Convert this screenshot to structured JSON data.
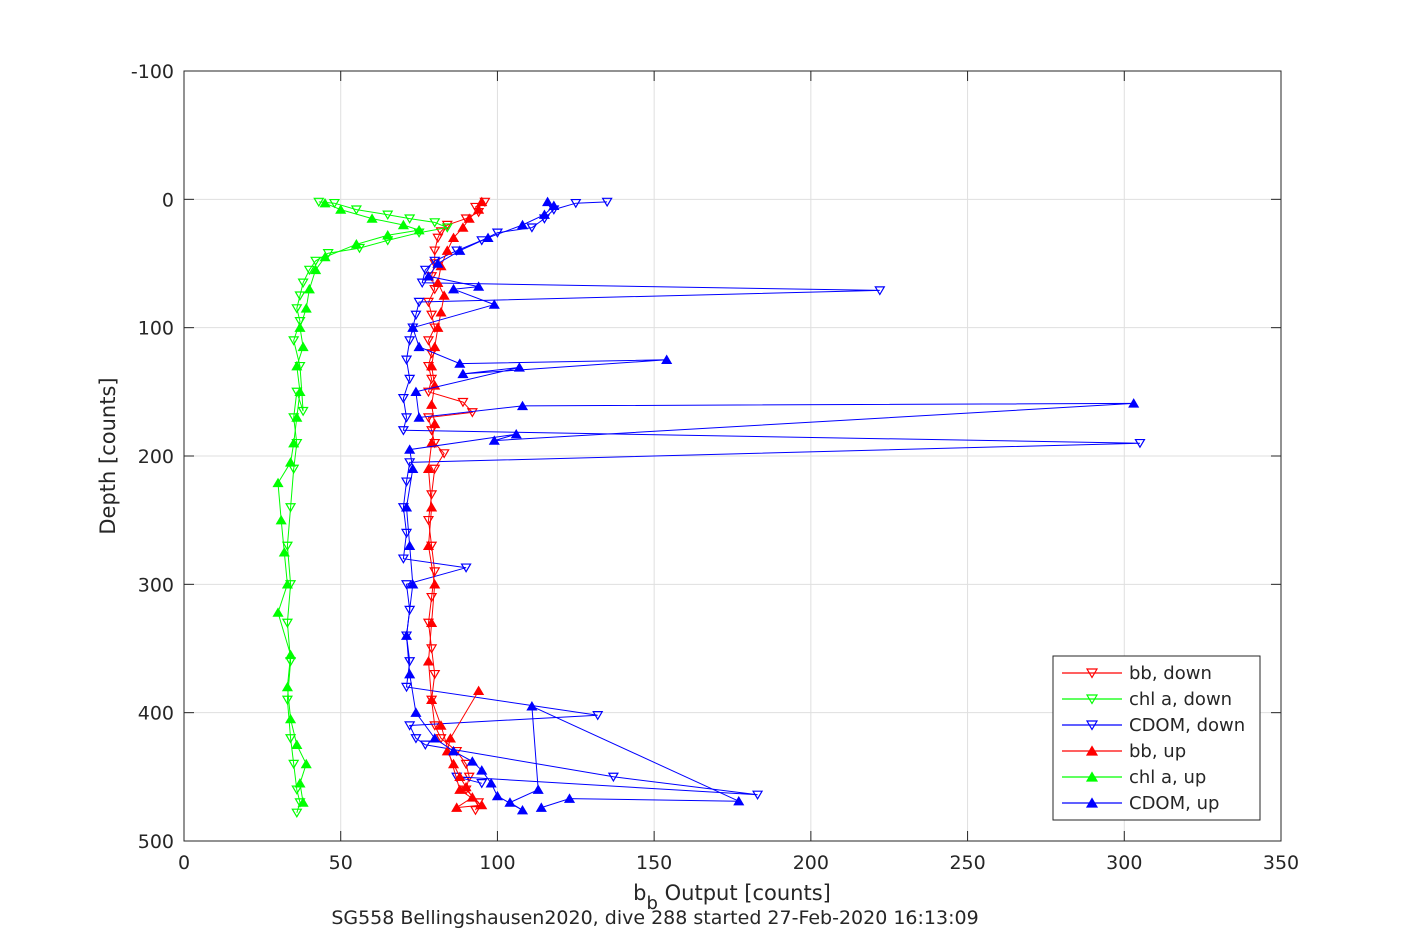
{
  "chart_data": {
    "type": "scatter",
    "title": "",
    "caption": "SG558 Bellingshausen2020, dive 288 started 27-Feb-2020 16:13:09",
    "xlabel": {
      "main": "b",
      "subscript": "b",
      "rest": " Output [counts]"
    },
    "ylabel": "Depth [counts]",
    "xlim": [
      0,
      350
    ],
    "ylim": [
      -100,
      500
    ],
    "y_reversed": true,
    "grid": true,
    "legend_position": "bottom-right",
    "x_ticks": [
      0,
      50,
      100,
      150,
      200,
      250,
      300,
      350
    ],
    "y_ticks": [
      -100,
      0,
      100,
      200,
      300,
      400,
      500
    ],
    "x_tick_labels": [
      "0",
      "50",
      "100",
      "150",
      "200",
      "250",
      "300",
      "350"
    ],
    "y_tick_labels": [
      "-100",
      "0",
      "100",
      "200",
      "300",
      "400",
      "500"
    ],
    "series": [
      {
        "name": "bb, down",
        "color": "#ff0000",
        "marker": "triangle-down",
        "points": [
          [
            96,
            2
          ],
          [
            93,
            6
          ],
          [
            94,
            10
          ],
          [
            90,
            15
          ],
          [
            84,
            20
          ],
          [
            82,
            25
          ],
          [
            81,
            30
          ],
          [
            80,
            40
          ],
          [
            80,
            50
          ],
          [
            79,
            60
          ],
          [
            80,
            70
          ],
          [
            78,
            80
          ],
          [
            79,
            90
          ],
          [
            80,
            100
          ],
          [
            78,
            110
          ],
          [
            79,
            120
          ],
          [
            78,
            130
          ],
          [
            79,
            140
          ],
          [
            78,
            150
          ],
          [
            89,
            158
          ],
          [
            92,
            166
          ],
          [
            78,
            170
          ],
          [
            79,
            180
          ],
          [
            80,
            190
          ],
          [
            83,
            198
          ],
          [
            80,
            210
          ],
          [
            79,
            230
          ],
          [
            78,
            250
          ],
          [
            79,
            270
          ],
          [
            80,
            290
          ],
          [
            79,
            310
          ],
          [
            78,
            330
          ],
          [
            79,
            350
          ],
          [
            80,
            370
          ],
          [
            79,
            390
          ],
          [
            80,
            410
          ],
          [
            82,
            420
          ],
          [
            87,
            430
          ],
          [
            90,
            440
          ],
          [
            91,
            450
          ],
          [
            90,
            460
          ],
          [
            94,
            470
          ],
          [
            93,
            476
          ]
        ]
      },
      {
        "name": "chl a, down",
        "color": "#00ff00",
        "marker": "triangle-down",
        "points": [
          [
            43,
            2
          ],
          [
            48,
            3
          ],
          [
            55,
            8
          ],
          [
            65,
            12
          ],
          [
            72,
            15
          ],
          [
            80,
            18
          ],
          [
            84,
            22
          ],
          [
            75,
            26
          ],
          [
            65,
            32
          ],
          [
            56,
            38
          ],
          [
            46,
            42
          ],
          [
            42,
            48
          ],
          [
            40,
            55
          ],
          [
            38,
            65
          ],
          [
            37,
            75
          ],
          [
            36,
            85
          ],
          [
            37,
            95
          ],
          [
            35,
            110
          ],
          [
            37,
            130
          ],
          [
            38,
            165
          ],
          [
            36,
            150
          ],
          [
            35,
            170
          ],
          [
            36,
            190
          ],
          [
            35,
            210
          ],
          [
            34,
            240
          ],
          [
            33,
            270
          ],
          [
            34,
            300
          ],
          [
            33,
            330
          ],
          [
            34,
            360
          ],
          [
            33,
            390
          ],
          [
            34,
            420
          ],
          [
            35,
            440
          ],
          [
            36,
            460
          ],
          [
            37,
            470
          ],
          [
            36,
            478
          ]
        ]
      },
      {
        "name": "CDOM, down",
        "color": "#0000ff",
        "marker": "triangle-down",
        "points": [
          [
            135,
            2
          ],
          [
            125,
            3
          ],
          [
            118,
            8
          ],
          [
            115,
            15
          ],
          [
            111,
            22
          ],
          [
            100,
            26
          ],
          [
            95,
            32
          ],
          [
            87,
            40
          ],
          [
            80,
            48
          ],
          [
            77,
            55
          ],
          [
            76,
            65
          ],
          [
            222,
            71
          ],
          [
            75,
            80
          ],
          [
            74,
            90
          ],
          [
            73,
            100
          ],
          [
            72,
            110
          ],
          [
            71,
            125
          ],
          [
            72,
            140
          ],
          [
            70,
            155
          ],
          [
            71,
            170
          ],
          [
            70,
            180
          ],
          [
            305,
            190
          ],
          [
            72,
            205
          ],
          [
            71,
            220
          ],
          [
            70,
            240
          ],
          [
            71,
            260
          ],
          [
            70,
            280
          ],
          [
            90,
            287
          ],
          [
            71,
            300
          ],
          [
            72,
            320
          ],
          [
            71,
            340
          ],
          [
            72,
            360
          ],
          [
            71,
            380
          ],
          [
            132,
            402
          ],
          [
            72,
            410
          ],
          [
            74,
            420
          ],
          [
            77,
            425
          ],
          [
            137,
            450
          ],
          [
            183,
            464
          ],
          [
            87,
            450
          ],
          [
            95,
            455
          ]
        ]
      },
      {
        "name": "bb, up",
        "color": "#ff0000",
        "marker": "triangle-up",
        "points": [
          [
            94,
            383
          ],
          [
            85,
            420
          ],
          [
            84,
            430
          ],
          [
            86,
            440
          ],
          [
            88,
            450
          ],
          [
            90,
            458
          ],
          [
            92,
            466
          ],
          [
            87,
            474
          ],
          [
            95,
            472
          ],
          [
            88,
            460
          ],
          [
            82,
            410
          ],
          [
            79,
            390
          ],
          [
            78,
            360
          ],
          [
            79,
            330
          ],
          [
            80,
            300
          ],
          [
            78,
            270
          ],
          [
            79,
            240
          ],
          [
            78,
            210
          ],
          [
            79,
            190
          ],
          [
            80,
            175
          ],
          [
            79,
            160
          ],
          [
            80,
            145
          ],
          [
            79,
            130
          ],
          [
            80,
            115
          ],
          [
            81,
            100
          ],
          [
            82,
            88
          ],
          [
            83,
            75
          ],
          [
            81,
            65
          ],
          [
            82,
            52
          ],
          [
            84,
            40
          ],
          [
            86,
            30
          ],
          [
            89,
            22
          ],
          [
            91,
            15
          ],
          [
            94,
            8
          ],
          [
            95,
            2
          ]
        ]
      },
      {
        "name": "chl a, up",
        "color": "#00ff00",
        "marker": "triangle-up",
        "points": [
          [
            38,
            470
          ],
          [
            37,
            455
          ],
          [
            39,
            440
          ],
          [
            36,
            425
          ],
          [
            34,
            405
          ],
          [
            33,
            380
          ],
          [
            34,
            355
          ],
          [
            30,
            322
          ],
          [
            33,
            300
          ],
          [
            32,
            275
          ],
          [
            31,
            250
          ],
          [
            30,
            221
          ],
          [
            34,
            205
          ],
          [
            35,
            190
          ],
          [
            36,
            170
          ],
          [
            37,
            150
          ],
          [
            36,
            130
          ],
          [
            38,
            115
          ],
          [
            37,
            100
          ],
          [
            39,
            85
          ],
          [
            40,
            70
          ],
          [
            42,
            55
          ],
          [
            45,
            45
          ],
          [
            55,
            35
          ],
          [
            65,
            28
          ],
          [
            75,
            24
          ],
          [
            70,
            20
          ],
          [
            60,
            15
          ],
          [
            50,
            8
          ],
          [
            45,
            3
          ]
        ]
      },
      {
        "name": "CDOM, up",
        "color": "#0000ff",
        "marker": "triangle-up",
        "points": [
          [
            114,
            474
          ],
          [
            123,
            467
          ],
          [
            177,
            469
          ],
          [
            111,
            395
          ],
          [
            113,
            460
          ],
          [
            104,
            470
          ],
          [
            108,
            476
          ],
          [
            100,
            465
          ],
          [
            98,
            455
          ],
          [
            95,
            445
          ],
          [
            92,
            438
          ],
          [
            86,
            430
          ],
          [
            80,
            420
          ],
          [
            74,
            400
          ],
          [
            72,
            370
          ],
          [
            71,
            340
          ],
          [
            73,
            300
          ],
          [
            72,
            270
          ],
          [
            71,
            240
          ],
          [
            73,
            210
          ],
          [
            72,
            195
          ],
          [
            106,
            183
          ],
          [
            99,
            188
          ],
          [
            303,
            159
          ],
          [
            108,
            161
          ],
          [
            75,
            170
          ],
          [
            74,
            150
          ],
          [
            107,
            131
          ],
          [
            89,
            136
          ],
          [
            154,
            125
          ],
          [
            88,
            128
          ],
          [
            75,
            115
          ],
          [
            73,
            100
          ],
          [
            99,
            82
          ],
          [
            86,
            70
          ],
          [
            94,
            68
          ],
          [
            78,
            60
          ],
          [
            81,
            50
          ],
          [
            88,
            40
          ],
          [
            97,
            30
          ],
          [
            108,
            20
          ],
          [
            115,
            12
          ],
          [
            118,
            5
          ],
          [
            116,
            2
          ]
        ]
      }
    ]
  }
}
